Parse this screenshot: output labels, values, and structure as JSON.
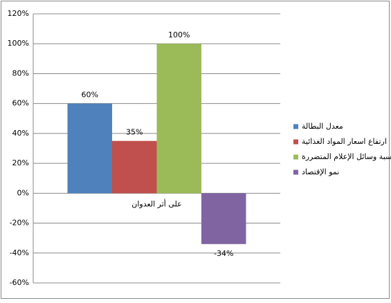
{
  "chart_data": {
    "type": "bar",
    "categories": [
      "على أثر العدوان"
    ],
    "series": [
      {
        "name": "معدل البطالة",
        "color": "#4f81bd",
        "values": [
          60
        ],
        "value_labels": [
          "60%"
        ]
      },
      {
        "name": "ارتفاع اسعار المواد الغذائية",
        "color": "#c0504d",
        "values": [
          35
        ],
        "value_labels": [
          "35%"
        ]
      },
      {
        "name": "نسبة وسائل الإعلام المتضررة",
        "color": "#9bbb59",
        "values": [
          100
        ],
        "value_labels": [
          "100%"
        ]
      },
      {
        "name": "نمو الإقتصاد",
        "color": "#8064a2",
        "values": [
          -34
        ],
        "value_labels": [
          "-34%"
        ]
      }
    ],
    "ylim": [
      -60,
      120
    ],
    "yticks": [
      {
        "value": -60,
        "label": "-60%"
      },
      {
        "value": -40,
        "label": "-40%"
      },
      {
        "value": -20,
        "label": "-20%"
      },
      {
        "value": 0,
        "label": "0%"
      },
      {
        "value": 20,
        "label": "20%"
      },
      {
        "value": 40,
        "label": "40%"
      },
      {
        "value": 60,
        "label": "60%"
      },
      {
        "value": 80,
        "label": "80%"
      },
      {
        "value": 100,
        "label": "100%"
      },
      {
        "value": 120,
        "label": "120%"
      }
    ],
    "grid": true,
    "legend": "right"
  }
}
